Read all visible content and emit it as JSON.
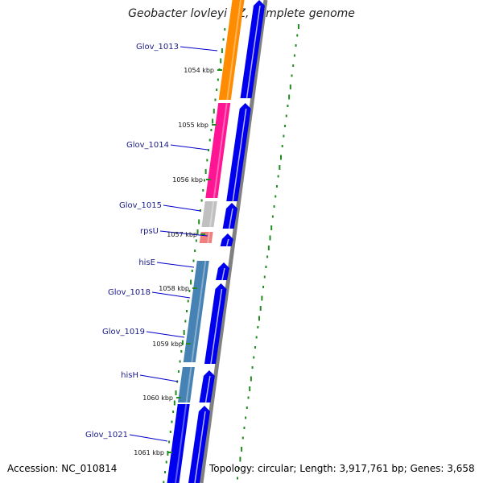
{
  "title": "Geobacter lovleyi SZ, complete genome",
  "footer": {
    "accession": "Accession: NC_010814",
    "summary": "Topology: circular; Length: 3,917,761 bp; Genes: 3,658"
  },
  "colors": {
    "orf": "#0000ee",
    "orange_gene": "#ff8c00",
    "pink_gene": "#ff1493",
    "gray_gene": "#c0c0c0",
    "rps_gene": "#f08080",
    "steel_gene": "#4682b4",
    "label_line": "#0000cc",
    "gc_dots": "#228b22",
    "backbone": "#808080"
  },
  "genes": [
    {
      "label": "Glov_1013",
      "color": "orange_gene"
    },
    {
      "label": "Glov_1014",
      "color": "pink_gene"
    },
    {
      "label": "Glov_1015",
      "color": "gray_gene"
    },
    {
      "label": "rpsU",
      "color": "rps_gene"
    },
    {
      "label": "hisE",
      "color": "steel_gene"
    },
    {
      "label": "Glov_1018",
      "color": "steel_gene"
    },
    {
      "label": "Glov_1019",
      "color": "steel_gene"
    },
    {
      "label": "hisH",
      "color": "steel_gene"
    },
    {
      "label": "Glov_1021",
      "color": "orf"
    }
  ],
  "kbp_ticks": [
    "1054 kbp",
    "1055 kbp",
    "1056 kbp",
    "1057 kbp",
    "1058 kbp",
    "1059 kbp",
    "1060 kbp",
    "1061 kbp"
  ]
}
